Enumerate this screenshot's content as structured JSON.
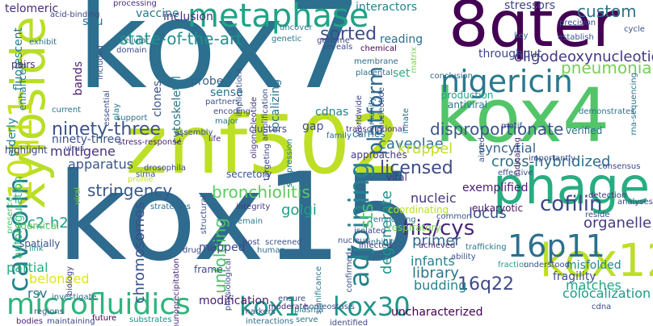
{
  "words": [
    {
      "text": "kox15",
      "color": "#2f6b8e"
    },
    {
      "text": "kox7",
      "color": "#2c6f8e"
    },
    {
      "text": "kox4",
      "color": "#52c569"
    },
    {
      "text": "znf502",
      "color": "#bddf26"
    },
    {
      "text": "8qter",
      "color": "#440154"
    },
    {
      "text": "phage",
      "color": "#27ad81"
    },
    {
      "text": "kox12",
      "color": "#bddf26"
    },
    {
      "text": "xyloside",
      "color": "#b8de29"
    },
    {
      "text": "metaphase",
      "color": "#20a386"
    },
    {
      "text": "nigericin",
      "color": "#2a788e"
    },
    {
      "text": "microfluidics",
      "color": "#2fb47c"
    },
    {
      "text": "kox1",
      "color": "#1f9e89"
    },
    {
      "text": "kox30",
      "color": "#1f968b"
    },
    {
      "text": "16p11",
      "color": "#2d708e"
    },
    {
      "text": "10q11",
      "color": "#c8e020"
    },
    {
      "text": "adjoining",
      "color": "#26828e"
    },
    {
      "text": "caveolin",
      "color": "#26828e"
    },
    {
      "text": "platform",
      "color": "#31688e"
    },
    {
      "text": "ninety-three",
      "color": "#3b528b"
    },
    {
      "text": "licensed",
      "color": "#3e4a89"
    },
    {
      "text": "stringency",
      "color": "#38598c"
    },
    {
      "text": "bronchiolitis",
      "color": "#5ec962"
    },
    {
      "text": "cofilin",
      "color": "#3f4788"
    },
    {
      "text": "his/cys",
      "color": "#482677"
    },
    {
      "text": "disproportionate",
      "color": "#3a548c"
    },
    {
      "text": "oligodeoxynucleotide",
      "color": "#443983"
    },
    {
      "text": "state-of-the-art",
      "color": "#21918c"
    },
    {
      "text": "sorted",
      "color": "#3e4c8a"
    },
    {
      "text": "custom",
      "color": "#2c738e"
    },
    {
      "text": "interactors",
      "color": "#25858e"
    },
    {
      "text": "stressors",
      "color": "#414487"
    },
    {
      "text": "caveolae",
      "color": "#2c728e"
    },
    {
      "text": "16q22",
      "color": "#3f4889"
    },
    {
      "text": "colocalization",
      "color": "#1f9a8a"
    },
    {
      "text": "uncharacterized",
      "color": "#440154"
    },
    {
      "text": "sts",
      "color": "#4ac16d"
    },
    {
      "text": "degenerate",
      "color": "#20938c"
    },
    {
      "text": "cross-hybridized",
      "color": "#2e6f8e"
    },
    {
      "text": "syncytial",
      "color": "#33638d"
    },
    {
      "text": "exemplified",
      "color": "#481f70"
    },
    {
      "text": "fragility",
      "color": "#3c508b"
    },
    {
      "text": "misfolded",
      "color": "#23888e"
    },
    {
      "text": "matches",
      "color": "#21a685"
    },
    {
      "text": "organelle",
      "color": "#443a83"
    },
    {
      "text": "pneumonia",
      "color": "#75d054"
    },
    {
      "text": "chromosomes",
      "color": "#3b518b"
    },
    {
      "text": "unfolding",
      "color": "#4ec36b"
    },
    {
      "text": "golgi",
      "color": "#1f9f88"
    },
    {
      "text": "kruppel",
      "color": "#c0df25"
    },
    {
      "text": "library",
      "color": "#2a768e"
    },
    {
      "text": "budding",
      "color": "#26828e"
    },
    {
      "text": "locus",
      "color": "#3b528b"
    },
    {
      "text": "probe",
      "color": "#33638d"
    },
    {
      "text": "sense",
      "color": "#2c728e"
    },
    {
      "text": "mapped",
      "color": "#3f4788"
    },
    {
      "text": "apparatus",
      "color": "#3a548c"
    },
    {
      "text": "multigene",
      "color": "#46337e"
    },
    {
      "text": "c2-h2",
      "color": "#1f9e89"
    },
    {
      "text": "belonged",
      "color": "#e3e418"
    },
    {
      "text": "rsv",
      "color": "#2e6e8e"
    },
    {
      "text": "partial",
      "color": "#27ad81"
    },
    {
      "text": "autoregulation",
      "color": "#35b779"
    },
    {
      "text": "bands",
      "color": "#481b6d"
    },
    {
      "text": "situ",
      "color": "#2d718e"
    },
    {
      "text": "vaccine",
      "color": "#2a778e"
    },
    {
      "text": "inclusion",
      "color": "#46307e"
    },
    {
      "text": "cytoskeletal",
      "color": "#2b758e"
    },
    {
      "text": "clones",
      "color": "#3b528b"
    },
    {
      "text": "localizing",
      "color": "#2c728e"
    },
    {
      "text": "gap",
      "color": "#3e4a89"
    },
    {
      "text": "cdnas",
      "color": "#25838e"
    },
    {
      "text": "throughput",
      "color": "#404688"
    },
    {
      "text": "reading",
      "color": "#2e6e8e"
    },
    {
      "text": "set",
      "color": "#27ad81"
    },
    {
      "text": "primer",
      "color": "#31688e"
    },
    {
      "text": "nucleic",
      "color": "#46327e"
    },
    {
      "text": "infants",
      "color": "#26818e"
    },
    {
      "text": "elderly",
      "color": "#24868e"
    },
    {
      "text": "fluorescent",
      "color": "#287c8e"
    },
    {
      "text": "telomeric",
      "color": "#472c7a"
    },
    {
      "text": "ninety-three2",
      "color": "#3b528b"
    },
    {
      "text": "frame",
      "color": "#3e4a89"
    },
    {
      "text": "modification",
      "color": "#482071"
    },
    {
      "text": "secretory",
      "color": "#3b528b"
    },
    {
      "text": "clusters",
      "color": "#3e4c8a"
    },
    {
      "text": "highlight",
      "color": "#3f4889"
    },
    {
      "text": "spatially",
      "color": "#3b528b"
    },
    {
      "text": "identical",
      "color": "#5ec962"
    },
    {
      "text": "enhanced",
      "color": "#2a788e"
    },
    {
      "text": "pairs",
      "color": "#472d7b"
    },
    {
      "text": "exhibit",
      "color": "#2e6e8e"
    },
    {
      "text": "link",
      "color": "#1f9e89"
    },
    {
      "text": "future",
      "color": "#440154"
    },
    {
      "text": "substrates",
      "color": "#20938c"
    },
    {
      "text": "bodies",
      "color": "#482576"
    },
    {
      "text": "maintaining",
      "color": "#3e4989"
    },
    {
      "text": "serve",
      "color": "#2d718e"
    },
    {
      "text": "identified",
      "color": "#3f4788"
    },
    {
      "text": "interactions",
      "color": "#2c728e"
    },
    {
      "text": "homeostasis",
      "color": "#3a548c"
    },
    {
      "text": "moderate",
      "color": "#482979"
    },
    {
      "text": "markers",
      "color": "#3e4a89"
    },
    {
      "text": "plasma",
      "color": "#2a778e"
    },
    {
      "text": "vital",
      "color": "#46337e"
    },
    {
      "text": "carries",
      "color": "#2c728e"
    },
    {
      "text": "approaches",
      "color": "#443a83"
    },
    {
      "text": "coordinating",
      "color": "#b8de29"
    },
    {
      "text": "respiratory",
      "color": "#7ad151"
    },
    {
      "text": "eukaryotic",
      "color": "#471365"
    },
    {
      "text": "antiviral",
      "color": "#29798e"
    },
    {
      "text": "production",
      "color": "#20a486"
    },
    {
      "text": "innate",
      "color": "#2e6d8e"
    },
    {
      "text": "motif",
      "color": "#3e4989"
    },
    {
      "text": "verified",
      "color": "#2c718e"
    },
    {
      "text": "consensus",
      "color": "#3f4788"
    },
    {
      "text": "effective",
      "color": "#3b518b"
    },
    {
      "text": "trafficking",
      "color": "#2a788e"
    },
    {
      "text": "fraction",
      "color": "#1fa088"
    },
    {
      "text": "achieved",
      "color": "#482878"
    },
    {
      "text": "ability",
      "color": "#3b528b"
    },
    {
      "text": "conclusion",
      "color": "#31688e"
    },
    {
      "text": "establish",
      "color": "#3b528b"
    },
    {
      "text": "precision",
      "color": "#3e4c8a"
    },
    {
      "text": "key",
      "color": "#2e6e8e"
    },
    {
      "text": "cycle",
      "color": "#3b528b"
    },
    {
      "text": "rna-sequencing",
      "color": "#2c728e"
    },
    {
      "text": "processing",
      "color": "#46327e"
    },
    {
      "text": "acid-binding",
      "color": "#3f4788"
    },
    {
      "text": "uncover",
      "color": "#2a788e"
    },
    {
      "text": "chemical",
      "color": "#440154"
    },
    {
      "text": "placental",
      "color": "#2d708e"
    },
    {
      "text": "membrane",
      "color": "#2f6b8e"
    },
    {
      "text": "reveals",
      "color": "#3e4a89"
    },
    {
      "text": "genome",
      "color": "#3f4788"
    },
    {
      "text": "oligonucleotide",
      "color": "#46327e"
    },
    {
      "text": "amplification",
      "color": "#3e4989"
    },
    {
      "text": "partners",
      "color": "#3b528b"
    },
    {
      "text": "encoding",
      "color": "#3f4788"
    },
    {
      "text": "major",
      "color": "#2c728e"
    },
    {
      "text": "cellular",
      "color": "#2a788e"
    },
    {
      "text": "domain",
      "color": "#3e4c8a"
    },
    {
      "text": "stress-response",
      "color": "#482475"
    },
    {
      "text": "life",
      "color": "#46307e"
    },
    {
      "text": "assembly",
      "color": "#3b528b"
    },
    {
      "text": "support",
      "color": "#2e6e8e"
    },
    {
      "text": "current",
      "color": "#2c728e"
    },
    {
      "text": "presence",
      "color": "#4ac16d"
    },
    {
      "text": "virus",
      "color": "#3e4a89"
    },
    {
      "text": "viral",
      "color": "#7ad151"
    },
    {
      "text": "profile",
      "color": "#c0df25"
    },
    {
      "text": "sirna",
      "color": "#3b528b"
    },
    {
      "text": "drosophila",
      "color": "#3f4788"
    },
    {
      "text": "strategies",
      "color": "#2e6e8e"
    },
    {
      "text": "drug",
      "color": "#3e4a89"
    },
    {
      "text": "immunoprecipitation",
      "color": "#482878"
    },
    {
      "text": "structural",
      "color": "#3b528b"
    },
    {
      "text": "integrity",
      "color": "#443983"
    },
    {
      "text": "remain",
      "color": "#2a788e"
    },
    {
      "text": "host",
      "color": "#3e4a89"
    },
    {
      "text": "human",
      "color": "#2c728e"
    },
    {
      "text": "screened",
      "color": "#3b528b"
    },
    {
      "text": "biology",
      "color": "#3f4788"
    },
    {
      "text": "investigate",
      "color": "#2e6e8e"
    },
    {
      "text": "regions",
      "color": "#3b528b"
    },
    {
      "text": "physiological",
      "color": "#3e4a89"
    },
    {
      "text": "significance",
      "color": "#2a788e"
    },
    {
      "text": "confirmed",
      "color": "#3b528b"
    },
    {
      "text": "infected",
      "color": "#46327e"
    },
    {
      "text": "isolated",
      "color": "#3e4a89"
    },
    {
      "text": "nucleus",
      "color": "#3b528b"
    },
    {
      "text": "remodeling",
      "color": "#2c728e"
    },
    {
      "text": "inhibitory",
      "color": "#2e6e8e"
    },
    {
      "text": "common",
      "color": "#3b528b"
    },
    {
      "text": "detection",
      "color": "#443983"
    },
    {
      "text": "reside",
      "color": "#3b528b"
    },
    {
      "text": "analyses",
      "color": "#3e4c8a"
    },
    {
      "text": "understood",
      "color": "#3b528b"
    },
    {
      "text": "cdna",
      "color": "#3e4a89"
    },
    {
      "text": "demonstrates",
      "color": "#2c728e"
    },
    {
      "text": "importantly",
      "color": "#3e4a89"
    },
    {
      "text": "indicating",
      "color": "#482878"
    },
    {
      "text": "aimed",
      "color": "#3b528b"
    },
    {
      "text": "transcriptional",
      "color": "#46327e"
    },
    {
      "text": "family",
      "color": "#2e6e8e"
    },
    {
      "text": "worldwide",
      "color": "#3f4788"
    },
    {
      "text": "immunity",
      "color": "#2c728e"
    },
    {
      "text": "implications",
      "color": "#3b528b"
    },
    {
      "text": "essential",
      "color": "#3e4a89"
    },
    {
      "text": "play",
      "color": "#2a788e"
    },
    {
      "text": "included",
      "color": "#3b528b"
    },
    {
      "text": "targeting",
      "color": "#3f4788"
    },
    {
      "text": "suppression",
      "color": "#2c728e"
    },
    {
      "text": "matrix",
      "color": "#7ad151"
    },
    {
      "text": "nucleotide",
      "color": "#3b528b"
    },
    {
      "text": "ensure",
      "color": "#3e4a89"
    },
    {
      "text": "genetic",
      "color": "#2a788e"
    }
  ]
}
